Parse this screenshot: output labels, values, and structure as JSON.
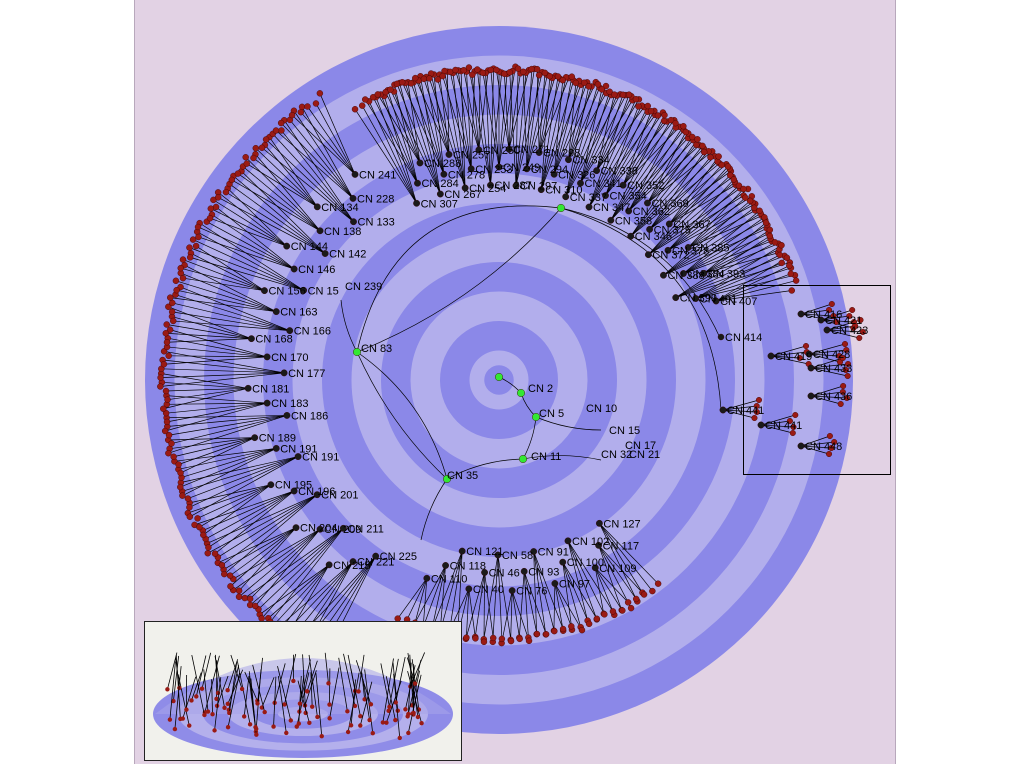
{
  "colors": {
    "background": "#e2d2e4",
    "ring_dark": "#8b88e8",
    "ring_light": "#b2aeec",
    "leaf_node": "#9a1a14",
    "internal_node": "#1a1a1a",
    "root_path_node": "#33e833",
    "edge": "#000000"
  },
  "tree": {
    "root_path": [
      {
        "label": "CN 2"
      },
      {
        "label": "CN 5"
      },
      {
        "label": "CN 10"
      },
      {
        "label": "CN 15"
      },
      {
        "label": "CN 17"
      },
      {
        "label": "CN 21"
      },
      {
        "label": "CN 11"
      },
      {
        "label": "CN 32"
      },
      {
        "label": "CN 35"
      },
      {
        "label": "CN 83"
      },
      {
        "label": "CN 239"
      }
    ],
    "labels_west": [
      {
        "label": "CN 225"
      },
      {
        "label": "CN 221"
      },
      {
        "label": "CN 215"
      },
      {
        "label": "CN 211"
      },
      {
        "label": "CN 209"
      },
      {
        "label": "CN 204"
      },
      {
        "label": "CN 201"
      },
      {
        "label": "CN 196"
      },
      {
        "label": "CN 195"
      },
      {
        "label": "CN 191"
      },
      {
        "label": "CN 191"
      },
      {
        "label": "CN 189"
      },
      {
        "label": "CN 186"
      },
      {
        "label": "CN 183"
      },
      {
        "label": "CN 181"
      },
      {
        "label": "CN 177"
      },
      {
        "label": "CN 170"
      },
      {
        "label": "CN 168"
      },
      {
        "label": "CN 166"
      },
      {
        "label": "CN 163"
      },
      {
        "label": "CN 156"
      },
      {
        "label": "CN 15"
      },
      {
        "label": "CN 146"
      },
      {
        "label": "CN 144"
      },
      {
        "label": "CN 142"
      },
      {
        "label": "CN 138"
      },
      {
        "label": "CN 134"
      },
      {
        "label": "CN 133"
      },
      {
        "label": "CN 228"
      },
      {
        "label": "CN 241"
      }
    ],
    "labels_north": [
      {
        "label": "CN 307"
      },
      {
        "label": "CN 284"
      },
      {
        "label": "CN 288"
      },
      {
        "label": "CN 267"
      },
      {
        "label": "CN 278"
      },
      {
        "label": "CN 257"
      },
      {
        "label": "CN 254"
      },
      {
        "label": "CN 253"
      },
      {
        "label": "CN 250"
      },
      {
        "label": "CN 287"
      },
      {
        "label": "CN 249"
      },
      {
        "label": "CN 271"
      },
      {
        "label": "CN 297"
      },
      {
        "label": "CN 294"
      },
      {
        "label": "CN 298"
      },
      {
        "label": "CN 310"
      },
      {
        "label": "CN 326"
      },
      {
        "label": "CN 334"
      },
      {
        "label": "CN 337"
      },
      {
        "label": "CN 341"
      },
      {
        "label": "CN 338"
      },
      {
        "label": "CN 347"
      },
      {
        "label": "CN 354"
      },
      {
        "label": "CN 352"
      },
      {
        "label": "CN 358"
      },
      {
        "label": "CN 362"
      },
      {
        "label": "CN 369"
      },
      {
        "label": "CN 346"
      },
      {
        "label": "CN 375"
      },
      {
        "label": "CN 367"
      },
      {
        "label": "CN 372"
      },
      {
        "label": "CN 378"
      },
      {
        "label": "CN 385"
      },
      {
        "label": "CN 388"
      },
      {
        "label": "CN 384"
      },
      {
        "label": "CN 393"
      },
      {
        "label": "CN 399"
      },
      {
        "label": "CN 401"
      },
      {
        "label": "CN 407"
      }
    ],
    "labels_east": [
      {
        "label": "CN 414"
      },
      {
        "label": "CN 416"
      },
      {
        "label": "CN 421"
      },
      {
        "label": "CN 423"
      },
      {
        "label": "CN 419"
      },
      {
        "label": "CN 428"
      },
      {
        "label": "CN 433"
      },
      {
        "label": "CN 436"
      },
      {
        "label": "CN 441"
      },
      {
        "label": "CN 441"
      },
      {
        "label": "CN 448"
      }
    ],
    "labels_south": [
      {
        "label": "CN 127"
      },
      {
        "label": "CN 117"
      },
      {
        "label": "CN 109"
      },
      {
        "label": "CN 102"
      },
      {
        "label": "CN 100"
      },
      {
        "label": "CN 97"
      },
      {
        "label": "CN 91"
      },
      {
        "label": "CN 93"
      },
      {
        "label": "CN 76"
      },
      {
        "label": "CN 58"
      },
      {
        "label": "CN 46"
      },
      {
        "label": "CN 40"
      },
      {
        "label": "CN 121"
      },
      {
        "label": "CN 118"
      },
      {
        "label": "CN 110"
      }
    ]
  }
}
